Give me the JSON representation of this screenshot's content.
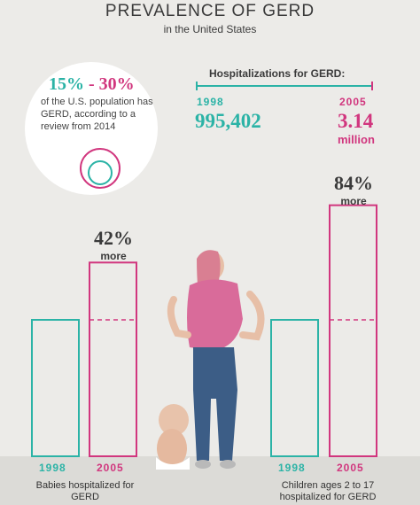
{
  "header": {
    "title": "PREVALENCE OF GERD",
    "subtitle": "in the United States"
  },
  "prevalence": {
    "low": "15%",
    "dash": "-",
    "high": "30%",
    "text": "of the U.S. population has GERD, according to a review from 2014"
  },
  "hospitalizations": {
    "title": "Hospitalizations for GERD:",
    "start_year": "1998",
    "start_value": "995,402",
    "end_year": "2005",
    "end_value": "3.14",
    "end_unit": "million"
  },
  "colors": {
    "teal": "#2bb3a6",
    "pink": "#d1367e",
    "background": "#ecebe8"
  },
  "chart_data": [
    {
      "type": "bar",
      "categories": [
        "1998",
        "2005"
      ],
      "values": [
        100,
        142
      ],
      "annotation_value": "42%",
      "annotation_word": "more",
      "caption": "Babies hospitalized for GERD",
      "colors": [
        "#2bb3a6",
        "#d1367e"
      ]
    },
    {
      "type": "bar",
      "categories": [
        "1998",
        "2005"
      ],
      "values": [
        100,
        184
      ],
      "annotation_value": "84%",
      "annotation_word": "more",
      "caption": "Children ages 2 to 17 hospitalized for GERD",
      "colors": [
        "#2bb3a6",
        "#d1367e"
      ]
    }
  ]
}
